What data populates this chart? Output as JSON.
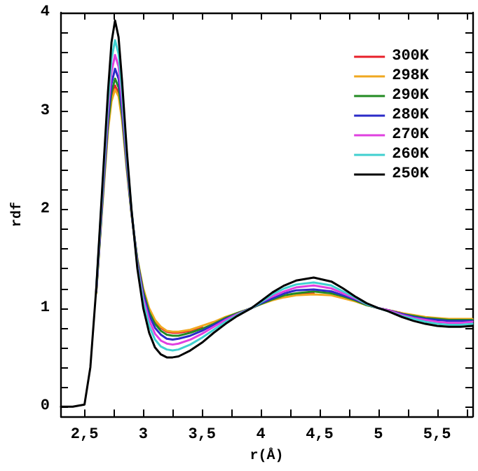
{
  "chart_data": {
    "type": "line",
    "xlabel": "r(Å)",
    "ylabel": "rdf",
    "x": [
      2.3,
      2.4,
      2.5,
      2.55,
      2.6,
      2.65,
      2.7,
      2.73,
      2.76,
      2.79,
      2.82,
      2.86,
      2.9,
      2.95,
      3.0,
      3.05,
      3.1,
      3.15,
      3.2,
      3.25,
      3.3,
      3.4,
      3.5,
      3.6,
      3.7,
      3.8,
      3.92,
      4.0,
      4.1,
      4.2,
      4.3,
      4.45,
      4.6,
      4.7,
      4.8,
      4.9,
      5.0,
      5.08,
      5.2,
      5.3,
      5.4,
      5.5,
      5.6,
      5.7,
      5.8
    ],
    "series": [
      {
        "name": "300K",
        "color": "#e8202a",
        "values": [
          null,
          null,
          null,
          null,
          null,
          null,
          null,
          3.13,
          3.26,
          3.18,
          null,
          null,
          null,
          null,
          null,
          null,
          0.87,
          0.8,
          0.76,
          0.75,
          0.75,
          0.77,
          0.81,
          null,
          null,
          null,
          null,
          null,
          null,
          null,
          1.14,
          1.15,
          null,
          null,
          null,
          null,
          null,
          0.98,
          0.95,
          null,
          null,
          null,
          null,
          null,
          null
        ]
      },
      {
        "name": "298K",
        "color": "#f0a820",
        "values": [
          null,
          null,
          null,
          null,
          1.15,
          2.0,
          2.8,
          3.1,
          3.22,
          3.15,
          2.9,
          2.4,
          1.95,
          1.5,
          1.2,
          1.0,
          0.88,
          0.81,
          0.77,
          0.76,
          0.76,
          0.78,
          0.82,
          0.86,
          0.91,
          0.95,
          1.0,
          1.04,
          1.08,
          1.11,
          1.13,
          1.14,
          1.13,
          1.1,
          1.07,
          1.03,
          1.0,
          0.98,
          0.95,
          0.93,
          0.91,
          0.9,
          0.89,
          0.89,
          0.89
        ]
      },
      {
        "name": "290K",
        "color": "#228b22",
        "values": [
          null,
          null,
          null,
          null,
          1.16,
          2.03,
          2.86,
          3.19,
          3.33,
          3.24,
          2.96,
          2.43,
          1.96,
          1.49,
          1.17,
          0.96,
          0.84,
          0.77,
          0.73,
          0.72,
          0.72,
          0.75,
          0.79,
          0.84,
          0.9,
          0.95,
          1.0,
          1.04,
          1.09,
          1.13,
          1.15,
          1.17,
          1.15,
          1.12,
          1.08,
          1.03,
          1.0,
          0.98,
          0.94,
          0.92,
          0.9,
          0.89,
          0.88,
          0.88,
          0.88
        ]
      },
      {
        "name": "280K",
        "color": "#2b2bc8",
        "values": [
          null,
          null,
          null,
          null,
          1.17,
          2.06,
          2.92,
          3.28,
          3.43,
          3.33,
          3.02,
          2.46,
          1.97,
          1.47,
          1.14,
          0.93,
          0.8,
          0.73,
          0.69,
          0.68,
          0.69,
          0.72,
          0.77,
          0.83,
          0.89,
          0.94,
          1.0,
          1.05,
          1.1,
          1.15,
          1.18,
          1.19,
          1.17,
          1.13,
          1.09,
          1.04,
          1.0,
          0.98,
          0.94,
          0.91,
          0.89,
          0.88,
          0.87,
          0.87,
          0.87
        ]
      },
      {
        "name": "270K",
        "color": "#e040e0",
        "values": [
          null,
          null,
          null,
          null,
          1.18,
          2.1,
          3.0,
          3.4,
          3.57,
          3.45,
          3.1,
          2.5,
          1.98,
          1.45,
          1.1,
          0.88,
          0.74,
          0.67,
          0.64,
          0.63,
          0.64,
          0.68,
          0.74,
          0.81,
          0.88,
          0.94,
          1.0,
          1.06,
          1.12,
          1.17,
          1.21,
          1.23,
          1.2,
          1.15,
          1.1,
          1.04,
          1.0,
          0.98,
          0.93,
          0.9,
          0.88,
          0.86,
          0.85,
          0.85,
          0.86
        ]
      },
      {
        "name": "260K",
        "color": "#40d0d0",
        "values": [
          null,
          null,
          null,
          null,
          1.19,
          2.14,
          3.09,
          3.53,
          3.72,
          3.58,
          3.19,
          2.54,
          1.99,
          1.43,
          1.06,
          0.82,
          0.68,
          0.61,
          0.58,
          0.57,
          0.58,
          0.63,
          0.7,
          0.78,
          0.86,
          0.93,
          1.0,
          1.06,
          1.14,
          1.2,
          1.24,
          1.26,
          1.23,
          1.17,
          1.11,
          1.04,
          1.0,
          0.97,
          0.92,
          0.89,
          0.86,
          0.84,
          0.83,
          0.83,
          0.84
        ]
      },
      {
        "name": "250K",
        "color": "#000000",
        "values": [
          0,
          0,
          0.02,
          0.4,
          1.2,
          2.2,
          3.2,
          3.7,
          3.92,
          3.75,
          3.3,
          2.6,
          2.0,
          1.4,
          1.0,
          0.75,
          0.6,
          0.53,
          0.5,
          0.5,
          0.51,
          0.57,
          0.65,
          0.75,
          0.84,
          0.92,
          1.0,
          1.07,
          1.16,
          1.23,
          1.28,
          1.31,
          1.27,
          1.2,
          1.12,
          1.05,
          1.0,
          0.97,
          0.91,
          0.87,
          0.84,
          0.82,
          0.81,
          0.81,
          0.82
        ]
      }
    ],
    "xlim": [
      2.3,
      5.8
    ],
    "xticks": [
      {
        "value": 2.5,
        "label": "2,5"
      },
      {
        "value": 2.75,
        "label": null
      },
      3,
      {
        "value": 3.25,
        "label": null
      },
      {
        "value": 3.5,
        "label": "3,5"
      },
      {
        "value": 3.75,
        "label": null
      },
      4,
      {
        "value": 4.25,
        "label": null
      },
      {
        "value": 4.5,
        "label": "4,5"
      },
      {
        "value": 4.75,
        "label": null
      },
      5,
      {
        "value": 5.25,
        "label": null
      },
      {
        "value": 5.5,
        "label": "5,5"
      },
      {
        "value": 5.75,
        "label": null
      }
    ],
    "ylim": [
      -0.1,
      4
    ],
    "yticks": [
      0,
      {
        "value": 0.2,
        "label": null
      },
      {
        "value": 0.4,
        "label": null
      },
      {
        "value": 0.6,
        "label": null
      },
      {
        "value": 0.8,
        "label": null
      },
      1,
      {
        "value": 1.2,
        "label": null
      },
      {
        "value": 1.4,
        "label": null
      },
      {
        "value": 1.6,
        "label": null
      },
      {
        "value": 1.8,
        "label": null
      },
      2,
      {
        "value": 2.2,
        "label": null
      },
      {
        "value": 2.4,
        "label": null
      },
      {
        "value": 2.6,
        "label": null
      },
      {
        "value": 2.8,
        "label": null
      },
      3,
      {
        "value": 3.2,
        "label": null
      },
      {
        "value": 3.4,
        "label": null
      },
      {
        "value": 3.6,
        "label": null
      },
      {
        "value": 3.8,
        "label": null
      },
      4
    ],
    "grid": false,
    "legend": "top right",
    "marker": "none",
    "line_style": "solid"
  }
}
